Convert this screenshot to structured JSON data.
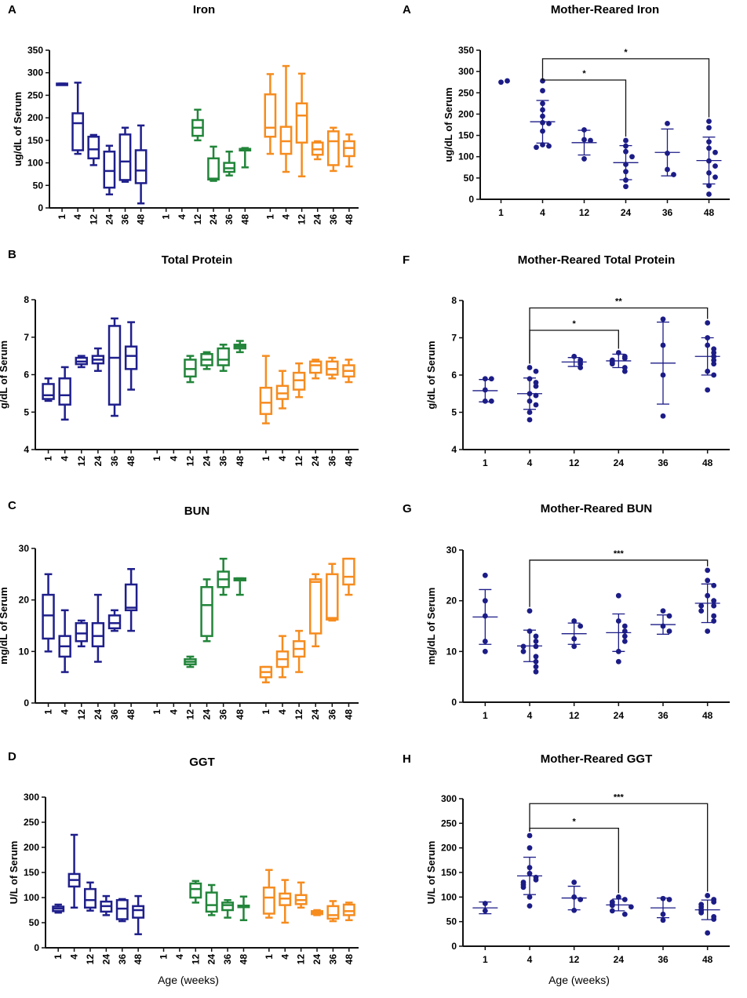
{
  "figure": {
    "xlabel_left": "Age (weeks)",
    "xlabel_right": "Age (weeks)"
  },
  "colors": {
    "group1": "#1f1f8c",
    "group2": "#22853a",
    "group3": "#f68c1f",
    "scatter": "#1c1c87",
    "axis": "#111111"
  },
  "chart_data": [
    {
      "id": "iron-box",
      "type": "box",
      "letter": "A",
      "title": "Iron",
      "ylabel": "ug/dL of Serum",
      "ylim": [
        0,
        350
      ],
      "yticks": [
        0,
        50,
        100,
        150,
        200,
        250,
        300,
        350
      ],
      "categories": [
        "1",
        "4",
        "12",
        "24",
        "36",
        "48"
      ],
      "groups": [
        {
          "color_key": "group1",
          "boxes": [
            {
              "min": 275,
              "q1": 275,
              "median": 275,
              "q3": 276,
              "max": 276
            },
            {
              "min": 120,
              "q1": 128,
              "median": 188,
              "q3": 210,
              "max": 278
            },
            {
              "min": 95,
              "q1": 110,
              "median": 130,
              "q3": 158,
              "max": 162
            },
            {
              "min": 30,
              "q1": 45,
              "median": 82,
              "q3": 125,
              "max": 138
            },
            {
              "min": 58,
              "q1": 62,
              "median": 103,
              "q3": 163,
              "max": 178
            },
            {
              "min": 10,
              "q1": 55,
              "median": 83,
              "q3": 128,
              "max": 183
            }
          ]
        },
        {
          "color_key": "group2",
          "boxes": [
            null,
            null,
            {
              "min": 150,
              "q1": 160,
              "median": 178,
              "q3": 195,
              "max": 218
            },
            {
              "min": 60,
              "q1": 63,
              "median": 65,
              "q3": 110,
              "max": 136
            },
            {
              "min": 72,
              "q1": 80,
              "median": 88,
              "q3": 100,
              "max": 125
            },
            {
              "min": 90,
              "q1": 130,
              "median": 130,
              "q3": 131,
              "max": 133
            }
          ]
        },
        {
          "color_key": "group3",
          "boxes": [
            {
              "min": 120,
              "q1": 158,
              "median": 178,
              "q3": 252,
              "max": 297
            },
            {
              "min": 80,
              "q1": 120,
              "median": 148,
              "q3": 180,
              "max": 315
            },
            {
              "min": 70,
              "q1": 145,
              "median": 205,
              "q3": 232,
              "max": 298
            },
            {
              "min": 108,
              "q1": 118,
              "median": 130,
              "q3": 145,
              "max": 148
            },
            {
              "min": 82,
              "q1": 95,
              "median": 148,
              "q3": 170,
              "max": 178
            },
            {
              "min": 92,
              "q1": 115,
              "median": 133,
              "q3": 148,
              "max": 163
            }
          ]
        }
      ]
    },
    {
      "id": "protein-box",
      "type": "box",
      "letter": "B",
      "title": "Total Protein",
      "ylabel": "g/dL of Serum",
      "ylim": [
        4,
        8
      ],
      "yticks": [
        4,
        5,
        6,
        7,
        8
      ],
      "categories": [
        "1",
        "4",
        "12",
        "24",
        "36",
        "48"
      ],
      "groups": [
        {
          "color_key": "group1",
          "boxes": [
            {
              "min": 5.3,
              "q1": 5.35,
              "median": 5.45,
              "q3": 5.75,
              "max": 5.9
            },
            {
              "min": 4.8,
              "q1": 5.2,
              "median": 5.45,
              "q3": 5.9,
              "max": 6.2
            },
            {
              "min": 6.2,
              "q1": 6.28,
              "median": 6.35,
              "q3": 6.45,
              "max": 6.5
            },
            {
              "min": 6.1,
              "q1": 6.3,
              "median": 6.4,
              "q3": 6.5,
              "max": 6.7
            },
            {
              "min": 4.9,
              "q1": 5.2,
              "median": 6.45,
              "q3": 7.3,
              "max": 7.5
            },
            {
              "min": 5.6,
              "q1": 6.15,
              "median": 6.5,
              "q3": 6.75,
              "max": 7.4
            }
          ]
        },
        {
          "color_key": "group2",
          "boxes": [
            null,
            null,
            {
              "min": 5.8,
              "q1": 5.95,
              "median": 6.15,
              "q3": 6.4,
              "max": 6.5
            },
            {
              "min": 6.15,
              "q1": 6.25,
              "median": 6.4,
              "q3": 6.55,
              "max": 6.6
            },
            {
              "min": 6.1,
              "q1": 6.25,
              "median": 6.4,
              "q3": 6.7,
              "max": 6.8
            },
            {
              "min": 6.6,
              "q1": 6.7,
              "median": 6.75,
              "q3": 6.8,
              "max": 6.9
            }
          ]
        },
        {
          "color_key": "group3",
          "boxes": [
            {
              "min": 4.7,
              "q1": 4.95,
              "median": 5.25,
              "q3": 5.65,
              "max": 6.5
            },
            {
              "min": 5.1,
              "q1": 5.35,
              "median": 5.5,
              "q3": 5.7,
              "max": 6.1
            },
            {
              "min": 5.4,
              "q1": 5.6,
              "median": 5.85,
              "q3": 6.05,
              "max": 6.3
            },
            {
              "min": 5.9,
              "q1": 6.05,
              "median": 6.25,
              "q3": 6.35,
              "max": 6.4
            },
            {
              "min": 5.9,
              "q1": 6.0,
              "median": 6.15,
              "q3": 6.35,
              "max": 6.45
            },
            {
              "min": 5.8,
              "q1": 5.95,
              "median": 6.1,
              "q3": 6.25,
              "max": 6.4
            }
          ]
        }
      ]
    },
    {
      "id": "bun-box",
      "type": "box",
      "letter": "C",
      "title": "BUN",
      "ylabel": "mg/dL of Serum",
      "ylim": [
        0,
        30
      ],
      "yticks": [
        0,
        10,
        20,
        30
      ],
      "categories": [
        "1",
        "4",
        "12",
        "24",
        "36",
        "48"
      ],
      "groups": [
        {
          "color_key": "group1",
          "boxes": [
            {
              "min": 10,
              "q1": 12.5,
              "median": 17,
              "q3": 21,
              "max": 25
            },
            {
              "min": 6,
              "q1": 9,
              "median": 11,
              "q3": 13,
              "max": 18
            },
            {
              "min": 11,
              "q1": 12,
              "median": 13.5,
              "q3": 15.5,
              "max": 16
            },
            {
              "min": 8,
              "q1": 11,
              "median": 13,
              "q3": 15.5,
              "max": 21
            },
            {
              "min": 14,
              "q1": 14.5,
              "median": 15.5,
              "q3": 17,
              "max": 18
            },
            {
              "min": 14,
              "q1": 18,
              "median": 18.5,
              "q3": 23,
              "max": 26
            }
          ]
        },
        {
          "color_key": "group2",
          "boxes": [
            null,
            null,
            {
              "min": 7,
              "q1": 7.5,
              "median": 8,
              "q3": 8.5,
              "max": 9
            },
            {
              "min": 12,
              "q1": 13,
              "median": 19,
              "q3": 22.5,
              "max": 24
            },
            {
              "min": 21,
              "q1": 22.5,
              "median": 24,
              "q3": 25.5,
              "max": 28
            },
            {
              "min": 21,
              "q1": 23.8,
              "median": 24,
              "q3": 24.2,
              "max": 24.2
            }
          ]
        },
        {
          "color_key": "group3",
          "boxes": [
            {
              "min": 4,
              "q1": 5,
              "median": 6,
              "q3": 7,
              "max": 7
            },
            {
              "min": 5,
              "q1": 7,
              "median": 8.5,
              "q3": 10,
              "max": 13
            },
            {
              "min": 6,
              "q1": 9,
              "median": 10.5,
              "q3": 12,
              "max": 14
            },
            {
              "min": 11,
              "q1": 13.5,
              "median": 23.5,
              "q3": 24,
              "max": 25
            },
            {
              "min": 16,
              "q1": 16.2,
              "median": 16.5,
              "q3": 25,
              "max": 27
            },
            {
              "min": 21,
              "q1": 23,
              "median": 24.5,
              "q3": 28,
              "max": 28
            }
          ]
        }
      ]
    },
    {
      "id": "ggt-box",
      "type": "box",
      "letter": "D",
      "title": "GGT",
      "ylabel": "U/L of Serum",
      "ylim": [
        0,
        300
      ],
      "yticks": [
        0,
        50,
        100,
        150,
        200,
        250,
        300
      ],
      "categories": [
        "1",
        "4",
        "12",
        "24",
        "36",
        "48"
      ],
      "groups": [
        {
          "color_key": "group1",
          "boxes": [
            {
              "min": 70,
              "q1": 73,
              "median": 78,
              "q3": 82,
              "max": 86
            },
            {
              "min": 80,
              "q1": 122,
              "median": 135,
              "q3": 147,
              "max": 225
            },
            {
              "min": 74,
              "q1": 80,
              "median": 95,
              "q3": 117,
              "max": 130
            },
            {
              "min": 65,
              "q1": 72,
              "median": 83,
              "q3": 92,
              "max": 103
            },
            {
              "min": 53,
              "q1": 57,
              "median": 78,
              "q3": 95,
              "max": 97
            },
            {
              "min": 27,
              "q1": 60,
              "median": 75,
              "q3": 83,
              "max": 103
            }
          ]
        },
        {
          "color_key": "group2",
          "boxes": [
            null,
            null,
            {
              "min": 90,
              "q1": 100,
              "median": 117,
              "q3": 128,
              "max": 133
            },
            {
              "min": 65,
              "q1": 72,
              "median": 85,
              "q3": 110,
              "max": 125
            },
            {
              "min": 60,
              "q1": 75,
              "median": 85,
              "q3": 90,
              "max": 95
            },
            {
              "min": 55,
              "q1": 82,
              "median": 83,
              "q3": 84,
              "max": 102
            }
          ]
        },
        {
          "color_key": "group3",
          "boxes": [
            {
              "min": 60,
              "q1": 68,
              "median": 100,
              "q3": 120,
              "max": 155
            },
            {
              "min": 50,
              "q1": 85,
              "median": 98,
              "q3": 108,
              "max": 135
            },
            {
              "min": 80,
              "q1": 87,
              "median": 95,
              "q3": 105,
              "max": 130
            },
            {
              "min": 65,
              "q1": 67,
              "median": 70,
              "q3": 73,
              "max": 75
            },
            {
              "min": 53,
              "q1": 58,
              "median": 65,
              "q3": 83,
              "max": 93
            },
            {
              "min": 55,
              "q1": 65,
              "median": 73,
              "q3": 86,
              "max": 90
            }
          ]
        }
      ]
    },
    {
      "id": "iron-scatter",
      "type": "scatter",
      "letter": "A",
      "title": "Mother-Reared Iron",
      "ylabel": "ug/dL  of Serum",
      "ylim": [
        0,
        350
      ],
      "yticks": [
        0,
        50,
        100,
        150,
        200,
        250,
        300,
        350
      ],
      "categories": [
        "1",
        "4",
        "12",
        "24",
        "36",
        "48"
      ],
      "points": [
        [
          275,
          278
        ],
        [
          278,
          255,
          225,
          210,
          195,
          180,
          178,
          160,
          128,
          125,
          122
        ],
        [
          163,
          140,
          138,
          95
        ],
        [
          138,
          125,
          112,
          100,
          82,
          65,
          45,
          30
        ],
        [
          178,
          108,
          70,
          58
        ],
        [
          183,
          168,
          135,
          120,
          110,
          90,
          78,
          62,
          52,
          32,
          12
        ]
      ],
      "means": [
        null,
        182,
        133,
        86,
        110,
        91
      ],
      "sds": [
        null,
        50,
        29,
        40,
        55,
        55
      ],
      "significance": [
        {
          "from": "4",
          "to": "24",
          "label": "*",
          "y": 280
        },
        {
          "from": "4",
          "to": "48",
          "label": "*",
          "y": 330
        }
      ]
    },
    {
      "id": "protein-scatter",
      "type": "scatter",
      "letter": "F",
      "title": "Mother-Reared Total Protein",
      "ylabel": "g/dL of Serum",
      "ylim": [
        4,
        8
      ],
      "yticks": [
        4,
        5,
        6,
        7,
        8
      ],
      "categories": [
        "1",
        "4",
        "12",
        "24",
        "36",
        "48"
      ],
      "points": [
        [
          5.9,
          5.9,
          5.6,
          5.3,
          5.3
        ],
        [
          6.2,
          6.1,
          5.9,
          5.8,
          5.7,
          5.5,
          5.45,
          5.3,
          5.2,
          5.0,
          4.8
        ],
        [
          6.5,
          6.4,
          6.3,
          6.2
        ],
        [
          6.6,
          6.5,
          6.45,
          6.4,
          6.35,
          6.3,
          6.2,
          6.1
        ],
        [
          7.5,
          6.8,
          6.0,
          4.9
        ],
        [
          7.4,
          7.0,
          6.8,
          6.7,
          6.6,
          6.5,
          6.4,
          6.3,
          6.1,
          6.0,
          5.6
        ]
      ],
      "means": [
        5.58,
        5.5,
        6.35,
        6.38,
        6.32,
        6.5
      ],
      "sds": [
        0.3,
        0.42,
        0.12,
        0.18,
        1.1,
        0.5
      ],
      "significance": [
        {
          "from": "4",
          "to": "24",
          "label": "*",
          "y": 7.2
        },
        {
          "from": "4",
          "to": "48",
          "label": "**",
          "y": 7.8
        }
      ]
    },
    {
      "id": "bun-scatter",
      "type": "scatter",
      "letter": "G",
      "title": "Mother-Reared BUN",
      "ylabel": "mg/dL of Serum",
      "ylim": [
        0,
        30
      ],
      "yticks": [
        0,
        10,
        20,
        30
      ],
      "categories": [
        "1",
        "4",
        "12",
        "24",
        "36",
        "48"
      ],
      "points": [
        [
          25,
          20,
          17,
          12,
          10
        ],
        [
          18,
          14,
          13,
          12,
          11,
          11,
          10,
          9,
          8,
          7,
          6
        ],
        [
          16,
          15,
          12.5,
          11
        ],
        [
          21,
          16,
          15,
          14,
          13,
          12,
          10,
          8
        ],
        [
          18,
          17,
          15,
          14
        ],
        [
          26,
          24,
          23,
          21,
          20,
          19,
          19,
          18,
          17,
          16,
          14
        ]
      ],
      "means": [
        16.8,
        11.1,
        13.5,
        13.7,
        15.3,
        19.5
      ],
      "sds": [
        5.4,
        3.1,
        2.1,
        3.7,
        1.9,
        3.8
      ],
      "significance": [
        {
          "from": "4",
          "to": "48",
          "label": "***",
          "y": 28
        }
      ]
    },
    {
      "id": "ggt-scatter",
      "type": "scatter",
      "letter": "H",
      "title": "Mother-Reared GGT",
      "ylabel": "U/L of Serum",
      "ylim": [
        0,
        300
      ],
      "yticks": [
        0,
        50,
        100,
        150,
        200,
        250,
        300
      ],
      "categories": [
        "1",
        "4",
        "12",
        "24",
        "36",
        "48"
      ],
      "points": [
        [
          87,
          72
        ],
        [
          225,
          200,
          160,
          148,
          140,
          135,
          130,
          125,
          120,
          100,
          82
        ],
        [
          130,
          100,
          95,
          73
        ],
        [
          100,
          95,
          90,
          85,
          83,
          80,
          72,
          65
        ],
        [
          97,
          95,
          65,
          53
        ],
        [
          103,
          95,
          90,
          85,
          80,
          75,
          72,
          68,
          60,
          55,
          27
        ]
      ],
      "means": [
        78,
        143,
        98,
        84,
        78,
        74
      ],
      "sds": [
        12,
        38,
        24,
        12,
        20,
        20
      ],
      "significance": [
        {
          "from": "4",
          "to": "24",
          "label": "*",
          "y": 240
        },
        {
          "from": "4",
          "to": "48",
          "label": "***",
          "y": 290
        }
      ]
    }
  ]
}
